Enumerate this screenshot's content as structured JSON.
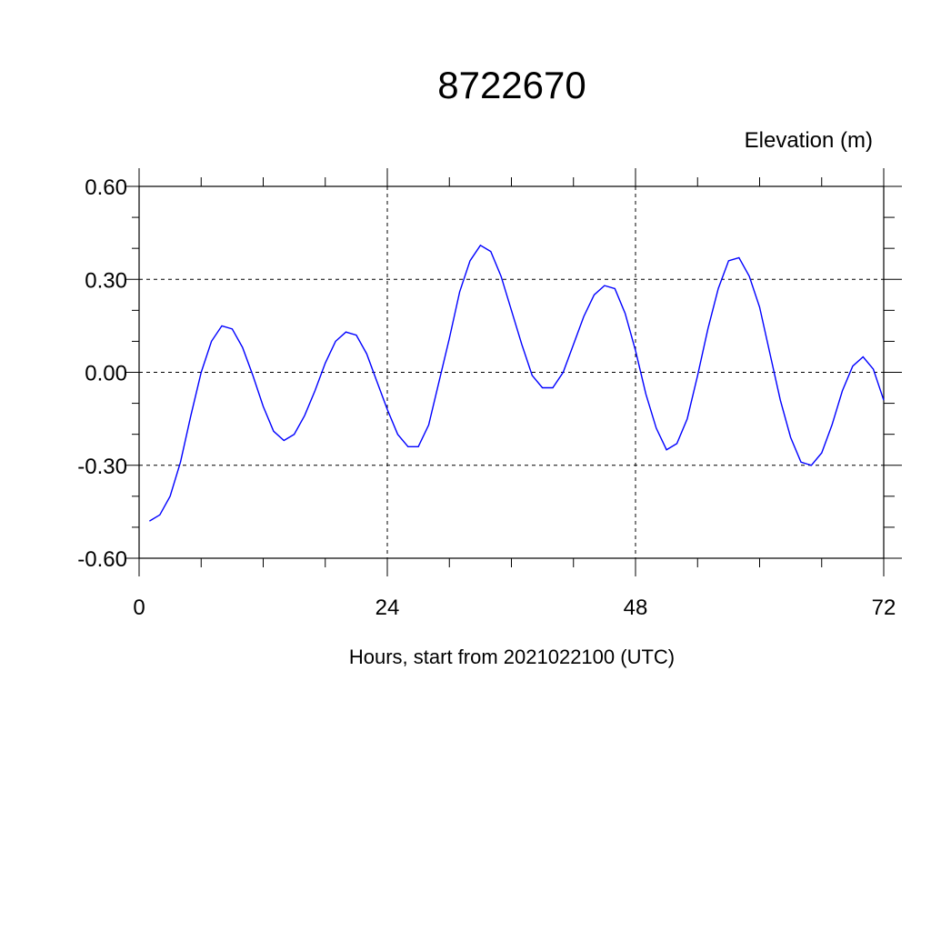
{
  "chart_data": {
    "type": "line",
    "title": "8722670",
    "ylabel": "Elevation (m)",
    "xlabel": "Hours, start from 2021022100 (UTC)",
    "xlim": [
      0,
      72
    ],
    "ylim": [
      -0.6,
      0.6
    ],
    "xticks": [
      0,
      24,
      48,
      72
    ],
    "xtick_labels": [
      "0",
      "24",
      "48",
      "72"
    ],
    "x_minor_step": 6,
    "yticks": [
      0.6,
      0.3,
      0.0,
      -0.3,
      -0.6
    ],
    "ytick_labels": [
      "0.60",
      "0.30",
      "0.00",
      "-0.30",
      "-0.60"
    ],
    "y_minor_step": 0.1,
    "grid": true,
    "line_color": "#0000ff",
    "series": [
      {
        "x": [
          1,
          2,
          3,
          4,
          5,
          6,
          7,
          8,
          9,
          10,
          11,
          12,
          13,
          14,
          15,
          16,
          17,
          18,
          19,
          20,
          21,
          22,
          23,
          24,
          25,
          26,
          27,
          28,
          29,
          30,
          31,
          32,
          33,
          34,
          35,
          36,
          37,
          38,
          39,
          40,
          41,
          42,
          43,
          44,
          45,
          46,
          47,
          48,
          49,
          50,
          51,
          52,
          53,
          54,
          55,
          56,
          57,
          58,
          59,
          60,
          61,
          62,
          63,
          64,
          65,
          66,
          67,
          68,
          69,
          70,
          71,
          72
        ],
        "y": [
          -0.48,
          -0.46,
          -0.4,
          -0.29,
          -0.14,
          0.0,
          0.1,
          0.15,
          0.14,
          0.08,
          -0.01,
          -0.11,
          -0.19,
          -0.22,
          -0.2,
          -0.14,
          -0.06,
          0.03,
          0.1,
          0.13,
          0.12,
          0.06,
          -0.03,
          -0.12,
          -0.2,
          -0.24,
          -0.24,
          -0.17,
          -0.03,
          0.11,
          0.26,
          0.36,
          0.41,
          0.39,
          0.31,
          0.2,
          0.09,
          -0.01,
          -0.05,
          -0.05,
          0.0,
          0.09,
          0.18,
          0.25,
          0.28,
          0.27,
          0.19,
          0.07,
          -0.07,
          -0.18,
          -0.25,
          -0.23,
          -0.15,
          -0.01,
          0.14,
          0.27,
          0.36,
          0.37,
          0.31,
          0.21,
          0.06,
          -0.09,
          -0.21,
          -0.29,
          -0.3,
          -0.26,
          -0.17,
          -0.06,
          0.02,
          0.05,
          0.01,
          -0.09
        ]
      }
    ]
  }
}
